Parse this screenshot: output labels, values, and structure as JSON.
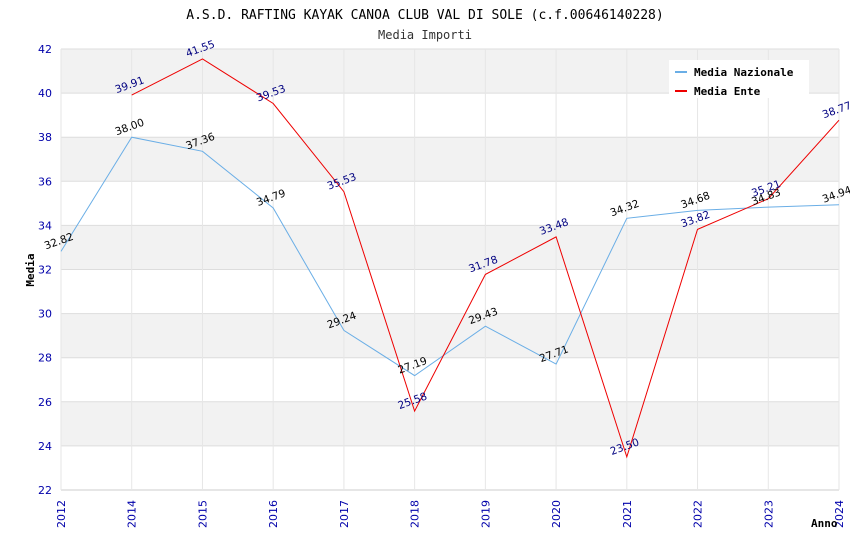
{
  "chart_data": {
    "type": "line",
    "title": "A.S.D. RAFTING KAYAK CANOA CLUB VAL DI SOLE (c.f.00646140228)",
    "subtitle": "Media Importi",
    "xlabel": "Anno",
    "ylabel": "Media",
    "ylim": [
      22,
      42
    ],
    "yticks": [
      "22",
      "24",
      "26",
      "28",
      "30",
      "32",
      "34",
      "36",
      "38",
      "40",
      "42"
    ],
    "categories": [
      "2012",
      "2014",
      "2015",
      "2016",
      "2017",
      "2018",
      "2019",
      "2020",
      "2021",
      "2022",
      "2023",
      "2024"
    ],
    "grid": true,
    "legend_position": "top-right",
    "series": [
      {
        "name": "Media Nazionale",
        "color": "#6aaee6",
        "label_color": "#000000",
        "values": [
          32.82,
          38.0,
          37.36,
          34.79,
          29.24,
          27.19,
          29.43,
          27.71,
          34.32,
          34.68,
          34.83,
          34.94
        ],
        "labels": [
          "32.82",
          "38.00",
          "37.36",
          "34.79",
          "29.24",
          "27.19",
          "29.43",
          "27.71",
          "34.32",
          "34.68",
          "34.83",
          "34.94"
        ]
      },
      {
        "name": "Media Ente",
        "color": "#ee0000",
        "label_color": "#000080",
        "values": [
          null,
          39.91,
          41.55,
          39.53,
          35.53,
          25.58,
          31.78,
          33.48,
          23.5,
          33.82,
          35.21,
          38.77
        ],
        "labels": [
          "",
          "39.91",
          "41.55",
          "39.53",
          "35.53",
          "25.58",
          "31.78",
          "33.48",
          "23.50",
          "33.82",
          "35.21",
          "38.77"
        ]
      }
    ]
  }
}
